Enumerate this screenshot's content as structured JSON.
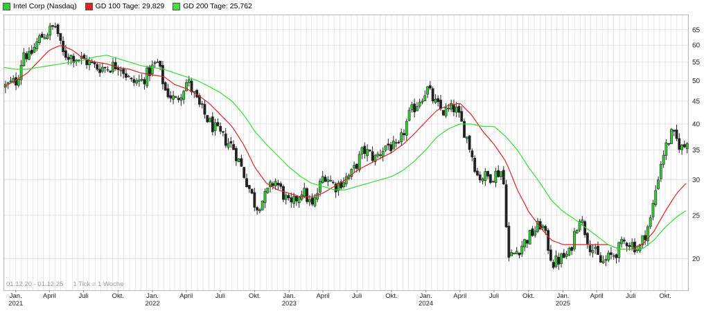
{
  "legend": [
    {
      "label": "Intel Corp (Nasdaq)",
      "color": "#33cc33"
    },
    {
      "label": "GD 100 Tage: 29,829",
      "color": "#dd2222"
    },
    {
      "label": "GD 200 Tage: 25,762",
      "color": "#44dd44"
    }
  ],
  "footer": {
    "range": "01.12.20 - 01.12.25",
    "tick_info": "1 Tick = 1 Woche"
  },
  "colors": {
    "up": "#33cc33",
    "down": "#222222",
    "ma100": "#dd2222",
    "ma200": "#33dd33",
    "grid": "#e2e2e2"
  },
  "chart_data": {
    "type": "candlestick",
    "title": "Intel Corp (Nasdaq)",
    "y_scale": "log",
    "ylim": [
      17,
      70
    ],
    "yticks": [
      20,
      25,
      30,
      35,
      40,
      45,
      50,
      55,
      60,
      65
    ],
    "x_range": [
      "2020-12-01",
      "2025-12-01"
    ],
    "x_ticks": [
      {
        "date": "2021-01-01",
        "label": "Jan.",
        "year": "2021"
      },
      {
        "date": "2021-04-01",
        "label": "April"
      },
      {
        "date": "2021-07-01",
        "label": "Juli"
      },
      {
        "date": "2021-10-01",
        "label": "Okt."
      },
      {
        "date": "2022-01-01",
        "label": "Jan.",
        "year": "2022"
      },
      {
        "date": "2022-04-01",
        "label": "April"
      },
      {
        "date": "2022-07-01",
        "label": "Juli"
      },
      {
        "date": "2022-10-01",
        "label": "Okt."
      },
      {
        "date": "2023-01-01",
        "label": "Jan.",
        "year": "2023"
      },
      {
        "date": "2023-04-01",
        "label": "April"
      },
      {
        "date": "2023-07-01",
        "label": "Juli"
      },
      {
        "date": "2023-10-01",
        "label": "Okt."
      },
      {
        "date": "2024-01-01",
        "label": "Jan.",
        "year": "2024"
      },
      {
        "date": "2024-04-01",
        "label": "April"
      },
      {
        "date": "2024-07-01",
        "label": "Juli"
      },
      {
        "date": "2024-10-01",
        "label": "Okt."
      },
      {
        "date": "2025-01-01",
        "label": "Jan.",
        "year": "2025"
      },
      {
        "date": "2025-04-01",
        "label": "April"
      },
      {
        "date": "2025-07-01",
        "label": "Juli"
      },
      {
        "date": "2025-10-01",
        "label": "Okt."
      }
    ],
    "price_anchors": [
      [
        "2020-12-01",
        48.5
      ],
      [
        "2021-01-01",
        50.0
      ],
      [
        "2021-01-20",
        58.5
      ],
      [
        "2021-02-01",
        56.0
      ],
      [
        "2021-03-01",
        62.0
      ],
      [
        "2021-04-01",
        65.0
      ],
      [
        "2021-04-15",
        66.5
      ],
      [
        "2021-05-01",
        57.5
      ],
      [
        "2021-06-01",
        56.5
      ],
      [
        "2021-07-01",
        55.5
      ],
      [
        "2021-08-01",
        53.5
      ],
      [
        "2021-09-01",
        53.5
      ],
      [
        "2021-10-01",
        54.5
      ],
      [
        "2021-11-01",
        49.5
      ],
      [
        "2021-12-01",
        50.0
      ],
      [
        "2022-01-10",
        55.0
      ],
      [
        "2022-02-01",
        47.5
      ],
      [
        "2022-03-01",
        45.0
      ],
      [
        "2022-04-01",
        50.0
      ],
      [
        "2022-05-01",
        44.0
      ],
      [
        "2022-06-01",
        40.0
      ],
      [
        "2022-07-01",
        37.5
      ],
      [
        "2022-08-01",
        35.5
      ],
      [
        "2022-09-01",
        30.5
      ],
      [
        "2022-10-01",
        26.0
      ],
      [
        "2022-10-25",
        27.5
      ],
      [
        "2022-11-20",
        30.0
      ],
      [
        "2023-01-01",
        26.0
      ],
      [
        "2023-02-01",
        28.5
      ],
      [
        "2023-03-01",
        26.0
      ],
      [
        "2023-04-01",
        31.0
      ],
      [
        "2023-05-01",
        29.0
      ],
      [
        "2023-06-15",
        31.0
      ],
      [
        "2023-07-15",
        35.0
      ],
      [
        "2023-08-15",
        33.5
      ],
      [
        "2023-09-15",
        36.0
      ],
      [
        "2023-10-15",
        35.0
      ],
      [
        "2023-11-15",
        42.0
      ],
      [
        "2024-01-01",
        48.0
      ],
      [
        "2024-01-25",
        44.0
      ],
      [
        "2024-02-15",
        42.5
      ],
      [
        "2024-03-15",
        43.5
      ],
      [
        "2024-04-15",
        37.5
      ],
      [
        "2024-05-15",
        30.5
      ],
      [
        "2024-06-15",
        30.5
      ],
      [
        "2024-07-20",
        31.5
      ],
      [
        "2024-08-05",
        20.0
      ],
      [
        "2024-09-01",
        21.0
      ],
      [
        "2024-10-01",
        22.5
      ],
      [
        "2024-11-01",
        24.0
      ],
      [
        "2024-12-01",
        19.5
      ],
      [
        "2025-01-15",
        20.5
      ],
      [
        "2025-02-10",
        25.0
      ],
      [
        "2025-03-10",
        21.5
      ],
      [
        "2025-04-10",
        19.5
      ],
      [
        "2025-05-15",
        20.5
      ],
      [
        "2025-06-15",
        22.0
      ],
      [
        "2025-07-20",
        21.0
      ],
      [
        "2025-08-20",
        24.5
      ],
      [
        "2025-09-20",
        34.0
      ],
      [
        "2025-10-15",
        38.0
      ],
      [
        "2025-11-15",
        35.0
      ],
      [
        "2025-12-01",
        38.5
      ]
    ],
    "ma100_anchors": [
      [
        "2020-12-01",
        48.5
      ],
      [
        "2021-01-01",
        50.0
      ],
      [
        "2021-02-01",
        52.0
      ],
      [
        "2021-03-01",
        55.0
      ],
      [
        "2021-04-01",
        58.5
      ],
      [
        "2021-05-01",
        60.0
      ],
      [
        "2021-06-01",
        58.5
      ],
      [
        "2021-07-01",
        56.0
      ],
      [
        "2021-08-01",
        55.0
      ],
      [
        "2021-09-01",
        54.5
      ],
      [
        "2021-10-01",
        53.5
      ],
      [
        "2021-11-01",
        53.0
      ],
      [
        "2021-12-01",
        52.0
      ],
      [
        "2022-01-01",
        51.5
      ],
      [
        "2022-02-01",
        51.0
      ],
      [
        "2022-03-01",
        49.0
      ],
      [
        "2022-04-01",
        48.0
      ],
      [
        "2022-05-01",
        46.5
      ],
      [
        "2022-06-01",
        44.5
      ],
      [
        "2022-07-01",
        42.0
      ],
      [
        "2022-08-01",
        39.5
      ],
      [
        "2022-09-01",
        36.0
      ],
      [
        "2022-10-01",
        32.0
      ],
      [
        "2022-11-01",
        29.5
      ],
      [
        "2022-12-01",
        28.5
      ],
      [
        "2023-01-01",
        28.0
      ],
      [
        "2023-02-01",
        27.5
      ],
      [
        "2023-03-01",
        27.5
      ],
      [
        "2023-04-01",
        28.0
      ],
      [
        "2023-05-01",
        29.0
      ],
      [
        "2023-06-01",
        30.0
      ],
      [
        "2023-07-01",
        31.5
      ],
      [
        "2023-08-01",
        32.5
      ],
      [
        "2023-09-01",
        33.5
      ],
      [
        "2023-10-01",
        34.5
      ],
      [
        "2023-11-01",
        36.0
      ],
      [
        "2023-12-01",
        38.0
      ],
      [
        "2024-01-01",
        40.5
      ],
      [
        "2024-02-01",
        43.0
      ],
      [
        "2024-03-01",
        44.0
      ],
      [
        "2024-04-01",
        44.5
      ],
      [
        "2024-05-01",
        42.0
      ],
      [
        "2024-06-01",
        38.5
      ],
      [
        "2024-07-01",
        36.0
      ],
      [
        "2024-08-01",
        33.0
      ],
      [
        "2024-09-01",
        28.5
      ],
      [
        "2024-10-01",
        25.5
      ],
      [
        "2024-11-01",
        23.5
      ],
      [
        "2024-12-01",
        22.0
      ],
      [
        "2025-01-01",
        21.5
      ],
      [
        "2025-02-01",
        21.5
      ],
      [
        "2025-03-01",
        21.5
      ],
      [
        "2025-04-01",
        21.5
      ],
      [
        "2025-05-01",
        21.5
      ],
      [
        "2025-06-01",
        21.0
      ],
      [
        "2025-07-01",
        21.0
      ],
      [
        "2025-08-01",
        21.5
      ],
      [
        "2025-09-01",
        23.0
      ],
      [
        "2025-10-01",
        25.5
      ],
      [
        "2025-11-01",
        28.0
      ],
      [
        "2025-12-01",
        29.8
      ]
    ],
    "ma200_anchors": [
      [
        "2020-12-01",
        53.5
      ],
      [
        "2021-01-01",
        53.0
      ],
      [
        "2021-02-01",
        53.0
      ],
      [
        "2021-03-01",
        53.5
      ],
      [
        "2021-04-01",
        54.0
      ],
      [
        "2021-05-01",
        54.5
      ],
      [
        "2021-06-01",
        55.0
      ],
      [
        "2021-07-01",
        55.5
      ],
      [
        "2021-08-01",
        56.5
      ],
      [
        "2021-09-01",
        57.0
      ],
      [
        "2021-10-01",
        56.0
      ],
      [
        "2021-11-01",
        55.0
      ],
      [
        "2021-12-01",
        54.0
      ],
      [
        "2022-01-01",
        53.5
      ],
      [
        "2022-02-01",
        53.0
      ],
      [
        "2022-03-01",
        52.0
      ],
      [
        "2022-04-01",
        51.0
      ],
      [
        "2022-05-01",
        50.0
      ],
      [
        "2022-06-01",
        48.5
      ],
      [
        "2022-07-01",
        47.0
      ],
      [
        "2022-08-01",
        45.0
      ],
      [
        "2022-09-01",
        42.0
      ],
      [
        "2022-10-01",
        38.5
      ],
      [
        "2022-11-01",
        36.0
      ],
      [
        "2022-12-01",
        34.0
      ],
      [
        "2023-01-01",
        32.0
      ],
      [
        "2023-02-01",
        30.5
      ],
      [
        "2023-03-01",
        29.5
      ],
      [
        "2023-04-01",
        29.0
      ],
      [
        "2023-05-01",
        28.5
      ],
      [
        "2023-06-01",
        28.5
      ],
      [
        "2023-07-01",
        29.0
      ],
      [
        "2023-08-01",
        29.5
      ],
      [
        "2023-09-01",
        30.0
      ],
      [
        "2023-10-01",
        30.5
      ],
      [
        "2023-11-01",
        31.5
      ],
      [
        "2023-12-01",
        33.0
      ],
      [
        "2024-01-01",
        35.0
      ],
      [
        "2024-02-01",
        37.5
      ],
      [
        "2024-03-01",
        39.0
      ],
      [
        "2024-04-01",
        40.0
      ],
      [
        "2024-05-01",
        40.0
      ],
      [
        "2024-06-01",
        39.5
      ],
      [
        "2024-07-01",
        39.5
      ],
      [
        "2024-08-01",
        37.5
      ],
      [
        "2024-09-01",
        35.0
      ],
      [
        "2024-10-01",
        32.0
      ],
      [
        "2024-11-01",
        29.5
      ],
      [
        "2024-12-01",
        27.0
      ],
      [
        "2025-01-01",
        25.5
      ],
      [
        "2025-02-01",
        24.5
      ],
      [
        "2025-03-01",
        23.5
      ],
      [
        "2025-04-01",
        22.5
      ],
      [
        "2025-05-01",
        21.5
      ],
      [
        "2025-06-01",
        21.0
      ],
      [
        "2025-07-01",
        21.0
      ],
      [
        "2025-08-01",
        21.0
      ],
      [
        "2025-09-01",
        22.0
      ],
      [
        "2025-10-01",
        23.5
      ],
      [
        "2025-11-01",
        24.8
      ],
      [
        "2025-12-01",
        25.8
      ]
    ]
  }
}
